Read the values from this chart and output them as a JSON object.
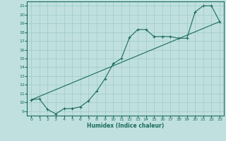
{
  "title": "",
  "xlabel": "Humidex (Indice chaleur)",
  "background_color": "#c0e0e0",
  "line_color": "#1a6b5a",
  "grid_color": "#a0c8c8",
  "xlim": [
    -0.5,
    23.5
  ],
  "ylim": [
    8.5,
    21.5
  ],
  "yticks": [
    9,
    10,
    11,
    12,
    13,
    14,
    15,
    16,
    17,
    18,
    19,
    20,
    21
  ],
  "xticks": [
    0,
    1,
    2,
    3,
    4,
    5,
    6,
    7,
    8,
    9,
    10,
    11,
    12,
    13,
    14,
    15,
    16,
    17,
    18,
    19,
    20,
    21,
    22,
    23
  ],
  "series1_x": [
    0,
    1,
    2,
    3,
    4,
    5,
    6,
    7,
    8,
    9,
    10,
    11,
    12,
    13,
    14,
    15,
    16,
    17,
    18,
    19,
    20,
    21,
    22,
    23
  ],
  "series1_y": [
    10.3,
    10.4,
    9.2,
    8.7,
    9.3,
    9.3,
    9.5,
    10.2,
    11.3,
    12.7,
    14.4,
    15.0,
    17.4,
    18.3,
    18.3,
    17.5,
    17.5,
    17.5,
    17.3,
    17.3,
    20.3,
    21.0,
    21.0,
    19.2
  ],
  "series2_x": [
    0,
    23
  ],
  "series2_y": [
    10.3,
    19.2
  ]
}
